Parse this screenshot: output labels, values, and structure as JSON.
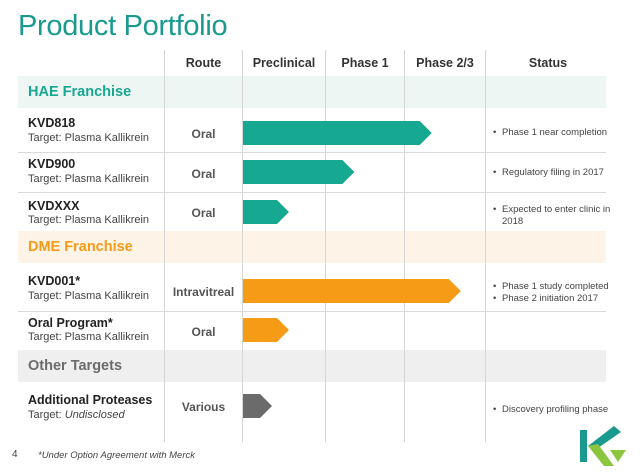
{
  "title": "Product Portfolio",
  "columns": {
    "route": "Route",
    "preclinical": "Preclinical",
    "phase1": "Phase 1",
    "phase23": "Phase 2/3",
    "status": "Status"
  },
  "colors": {
    "teal": "#17a891",
    "orange": "#f59b15",
    "gray": "#6b6b6b",
    "teal_band": "#eef6f4",
    "orange_band": "#fdf3e6",
    "gray_band": "#efefef"
  },
  "sections": [
    {
      "label": "HAE Franchise",
      "color": "#17a891",
      "programs": [
        {
          "name": "KVD818",
          "target": "Target: Plasma Kallikrein",
          "route": "Oral",
          "progress": 0.78,
          "status": [
            "Phase 1 near completion"
          ]
        },
        {
          "name": "KVD900",
          "target": "Target: Plasma Kallikrein",
          "route": "Oral",
          "progress": 0.46,
          "status": [
            "Regulatory filing in 2017"
          ]
        },
        {
          "name": "KVDXXX",
          "target": "Target: Plasma Kallikrein",
          "route": "Oral",
          "progress": 0.19,
          "status": [
            "Expected to enter clinic in 2018"
          ]
        }
      ]
    },
    {
      "label": "DME Franchise",
      "color": "#f59b15",
      "programs": [
        {
          "name": "KVD001*",
          "target": "Target: Plasma Kallikrein",
          "route": "Intravitreal",
          "progress": 0.9,
          "status": [
            "Phase 1 study completed",
            "Phase 2 initiation 2017"
          ]
        },
        {
          "name": "Oral Program*",
          "target": "Target: Plasma Kallikrein",
          "route": "Oral",
          "progress": 0.19,
          "status": []
        }
      ]
    },
    {
      "label": "Other Targets",
      "color": "#6b6b6b",
      "programs": [
        {
          "name": "Additional Proteases",
          "target_prefix": "Target: ",
          "target_italic": "Undisclosed",
          "route": "Various",
          "progress": 0.12,
          "status": [
            "Discovery profiling phase"
          ]
        }
      ]
    }
  ],
  "footnote": "*Under Option Agreement with Merck",
  "page_number": "4",
  "logo": "kalvista-logo"
}
